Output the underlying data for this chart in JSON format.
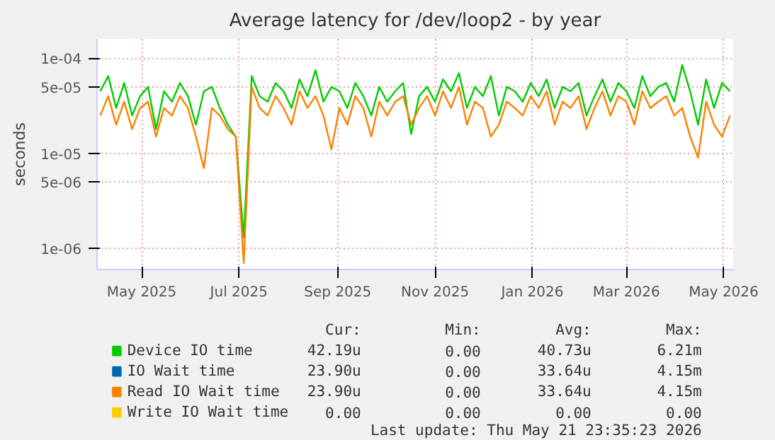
{
  "chart_data": {
    "type": "line",
    "title": "Average latency for /dev/loop2 - by year",
    "ylabel": "seconds",
    "log": "y",
    "grid": true,
    "legend": "bottom",
    "x": [
      "2025-04-05",
      "2025-04-10",
      "2025-04-15",
      "2025-04-20",
      "2025-04-25",
      "2025-04-30",
      "2025-05-05",
      "2025-05-10",
      "2025-05-15",
      "2025-05-20",
      "2025-05-25",
      "2025-05-30",
      "2025-06-04",
      "2025-06-09",
      "2025-06-14",
      "2025-06-19",
      "2025-06-24",
      "2025-06-29",
      "2025-07-04",
      "2025-07-09",
      "2025-07-14",
      "2025-07-19",
      "2025-07-24",
      "2025-07-29",
      "2025-08-03",
      "2025-08-08",
      "2025-08-13",
      "2025-08-18",
      "2025-08-23",
      "2025-08-28",
      "2025-09-02",
      "2025-09-07",
      "2025-09-12",
      "2025-09-17",
      "2025-09-22",
      "2025-09-27",
      "2025-10-02",
      "2025-10-07",
      "2025-10-12",
      "2025-10-17",
      "2025-10-22",
      "2025-10-27",
      "2025-11-01",
      "2025-11-06",
      "2025-11-11",
      "2025-11-16",
      "2025-11-21",
      "2025-11-26",
      "2025-12-01",
      "2025-12-06",
      "2025-12-11",
      "2025-12-16",
      "2025-12-21",
      "2025-12-26",
      "2025-12-31",
      "2026-01-05",
      "2026-01-10",
      "2026-01-15",
      "2026-01-20",
      "2026-01-25",
      "2026-01-30",
      "2026-02-04",
      "2026-02-09",
      "2026-02-14",
      "2026-02-19",
      "2026-02-24",
      "2026-03-01",
      "2026-03-06",
      "2026-03-11",
      "2026-03-16",
      "2026-03-21",
      "2026-03-26",
      "2026-03-31",
      "2026-04-05",
      "2026-04-10",
      "2026-04-15",
      "2026-04-20",
      "2026-04-25",
      "2026-04-30",
      "2026-05-05"
    ],
    "xlim": [
      "2025-04-03",
      "2026-05-07"
    ],
    "xticks": [
      {
        "value": "2025-05-01",
        "label": "May 2025"
      },
      {
        "value": "2025-07-01",
        "label": "Jul 2025"
      },
      {
        "value": "2025-09-01",
        "label": "Sep 2025"
      },
      {
        "value": "2025-11-01",
        "label": "Nov 2025"
      },
      {
        "value": "2026-01-01",
        "label": "Jan 2026"
      },
      {
        "value": "2026-03-01",
        "label": "Mar 2026"
      },
      {
        "value": "2026-05-01",
        "label": "May 2026"
      }
    ],
    "ylim": [
      6e-07,
      0.00016
    ],
    "yticks": [
      {
        "value": 1e-06,
        "label": "1e-06"
      },
      {
        "value": 5e-06,
        "label": "5e-06"
      },
      {
        "value": 1e-05,
        "label": "1e-05"
      },
      {
        "value": 5e-05,
        "label": "5e-05"
      },
      {
        "value": 0.0001,
        "label": "1e-04"
      }
    ],
    "series": [
      {
        "name": "Device IO time",
        "color": "#00cc00",
        "values": [
          4.5e-05,
          6.5e-05,
          3e-05,
          5.5e-05,
          2.5e-05,
          4e-05,
          5e-05,
          1.8e-05,
          4.5e-05,
          3.5e-05,
          5.5e-05,
          4e-05,
          2e-05,
          4.5e-05,
          5e-05,
          3e-05,
          2e-05,
          1.5e-05,
          1.3e-06,
          6.5e-05,
          4e-05,
          3.5e-05,
          5.5e-05,
          4.5e-05,
          3e-05,
          6e-05,
          4e-05,
          7.5e-05,
          3.5e-05,
          5e-05,
          4.5e-05,
          3e-05,
          5.5e-05,
          4e-05,
          2.5e-05,
          5e-05,
          3.5e-05,
          4.5e-05,
          5.5e-05,
          1.6e-05,
          4e-05,
          5e-05,
          3.5e-05,
          6e-05,
          4.5e-05,
          7e-05,
          3e-05,
          5e-05,
          4e-05,
          6.5e-05,
          2.5e-05,
          5e-05,
          4.5e-05,
          3.5e-05,
          5.5e-05,
          4e-05,
          6e-05,
          3e-05,
          5e-05,
          4.5e-05,
          5.5e-05,
          2.5e-05,
          4e-05,
          6e-05,
          3.5e-05,
          5.5e-05,
          4.5e-05,
          3e-05,
          6.5e-05,
          4e-05,
          5e-05,
          5.5e-05,
          3.5e-05,
          8.5e-05,
          4.5e-05,
          2e-05,
          6e-05,
          3e-05,
          5.5e-05,
          4.5e-05
        ]
      },
      {
        "name": "IO Wait time",
        "color": "#0066b3",
        "values": [
          null,
          null,
          null,
          null,
          null,
          null,
          null,
          null,
          null,
          null,
          null,
          null,
          null,
          null,
          null,
          null,
          null,
          null,
          null,
          null,
          null,
          null,
          null,
          null,
          null,
          null,
          null,
          null,
          null,
          null,
          null,
          null,
          null,
          null,
          null,
          null,
          null,
          null,
          null,
          null,
          null,
          null,
          null,
          null,
          null,
          null,
          null,
          null,
          null,
          null,
          null,
          null,
          null,
          null,
          null,
          null,
          null,
          null,
          null,
          null,
          null,
          null,
          null,
          null,
          null,
          null,
          null,
          null,
          null,
          null,
          null,
          null,
          null,
          null,
          null,
          null,
          null,
          null,
          null,
          null
        ]
      },
      {
        "name": "Read IO Wait time",
        "color": "#ff8000",
        "values": [
          2.5e-05,
          4e-05,
          2e-05,
          3.5e-05,
          1.8e-05,
          3e-05,
          3.5e-05,
          1.5e-05,
          3e-05,
          2.5e-05,
          4e-05,
          3e-05,
          1.5e-05,
          7e-06,
          3e-05,
          2.5e-05,
          1.8e-05,
          1.5e-05,
          7e-07,
          5e-05,
          3e-05,
          2.5e-05,
          4e-05,
          3e-05,
          2e-05,
          4.5e-05,
          3e-05,
          4e-05,
          2.5e-05,
          1.1e-05,
          3e-05,
          2e-05,
          4e-05,
          3e-05,
          1.5e-05,
          3.5e-05,
          2.5e-05,
          3.5e-05,
          4e-05,
          2e-05,
          3e-05,
          4e-05,
          2.5e-05,
          4.5e-05,
          3e-05,
          5e-05,
          2e-05,
          3.5e-05,
          3e-05,
          1.5e-05,
          2e-05,
          3.5e-05,
          3e-05,
          2.5e-05,
          4e-05,
          3e-05,
          4.5e-05,
          2e-05,
          3.5e-05,
          3e-05,
          4e-05,
          1.8e-05,
          3e-05,
          4.5e-05,
          2.5e-05,
          4e-05,
          3.5e-05,
          2e-05,
          4.5e-05,
          3e-05,
          3.5e-05,
          4e-05,
          2.5e-05,
          3e-05,
          1.5e-05,
          9e-06,
          3.5e-05,
          2e-05,
          1.5e-05,
          2.5e-05
        ]
      },
      {
        "name": "Write IO Wait time",
        "color": "#ffcc00",
        "values": [
          null,
          null,
          null,
          null,
          null,
          null,
          null,
          null,
          null,
          null,
          null,
          null,
          null,
          null,
          null,
          null,
          null,
          null,
          null,
          null,
          null,
          null,
          null,
          null,
          null,
          null,
          null,
          null,
          null,
          null,
          null,
          null,
          null,
          null,
          null,
          null,
          null,
          null,
          null,
          null,
          null,
          null,
          null,
          null,
          null,
          null,
          null,
          null,
          null,
          null,
          null,
          null,
          null,
          null,
          null,
          null,
          null,
          null,
          null,
          null,
          null,
          null,
          null,
          null,
          null,
          null,
          null,
          null,
          null,
          null,
          null,
          null,
          null,
          null,
          null,
          null,
          null,
          null,
          null,
          null
        ]
      }
    ],
    "annotations": [
      "Cur:",
      "Min:",
      "Avg:",
      "Max:",
      "42.19u",
      "0.00",
      "40.73u",
      "6.21m",
      "23.90u",
      "0.00",
      "33.64u",
      "4.15m",
      "23.90u",
      "0.00",
      "33.64u",
      "4.15m",
      "0.00",
      "0.00",
      "0.00",
      "0.00",
      "Last update: Thu May 21 23:35:23 2026"
    ]
  }
}
